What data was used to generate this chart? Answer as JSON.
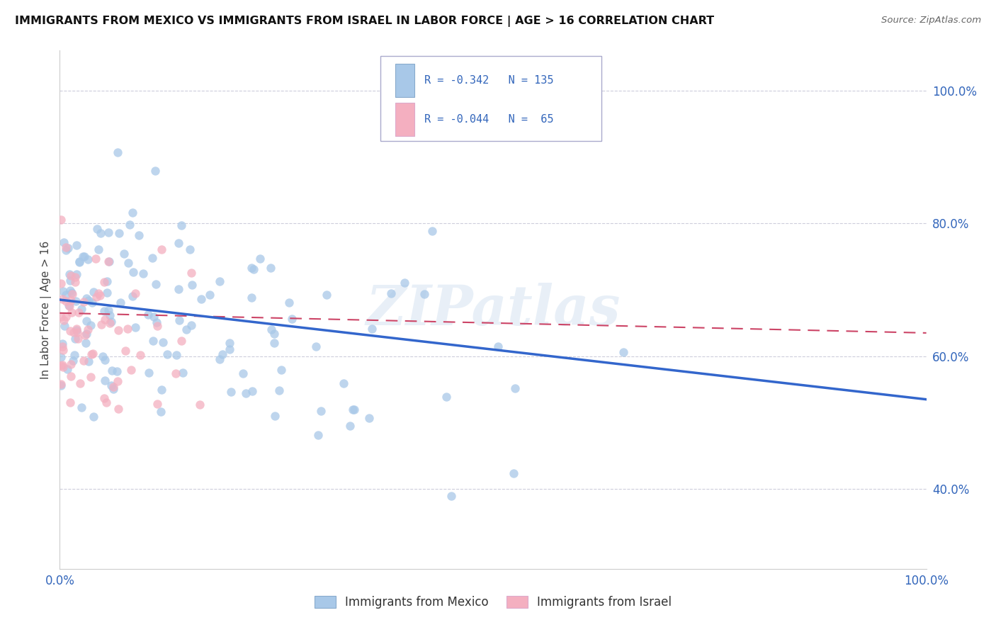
{
  "title": "IMMIGRANTS FROM MEXICO VS IMMIGRANTS FROM ISRAEL IN LABOR FORCE | AGE > 16 CORRELATION CHART",
  "source": "Source: ZipAtlas.com",
  "ylabel": "In Labor Force | Age > 16",
  "legend_label_mexico": "Immigrants from Mexico",
  "legend_label_israel": "Immigrants from Israel",
  "R_mexico": -0.342,
  "N_mexico": 135,
  "R_israel": -0.044,
  "N_israel": 65,
  "color_mexico": "#a8c8e8",
  "color_israel": "#f4afc0",
  "color_mexico_line": "#3366cc",
  "color_israel_line": "#cc4466",
  "color_text_blue": "#3366bb",
  "background_color": "#ffffff",
  "watermark": "ZIPatlas",
  "xlim": [
    0.0,
    1.0
  ],
  "ylim": [
    0.28,
    1.06
  ],
  "yticks": [
    0.4,
    0.6,
    0.8,
    1.0
  ],
  "ytick_labels": [
    "40.0%",
    "60.0%",
    "80.0%",
    "100.0%"
  ],
  "xtick_labels": [
    "0.0%",
    "100.0%"
  ],
  "mexico_line_x0": 0.0,
  "mexico_line_x1": 1.0,
  "mexico_line_y0": 0.685,
  "mexico_line_y1": 0.535,
  "israel_line_x0": 0.0,
  "israel_line_x1": 1.0,
  "israel_line_y0": 0.665,
  "israel_line_y1": 0.635
}
